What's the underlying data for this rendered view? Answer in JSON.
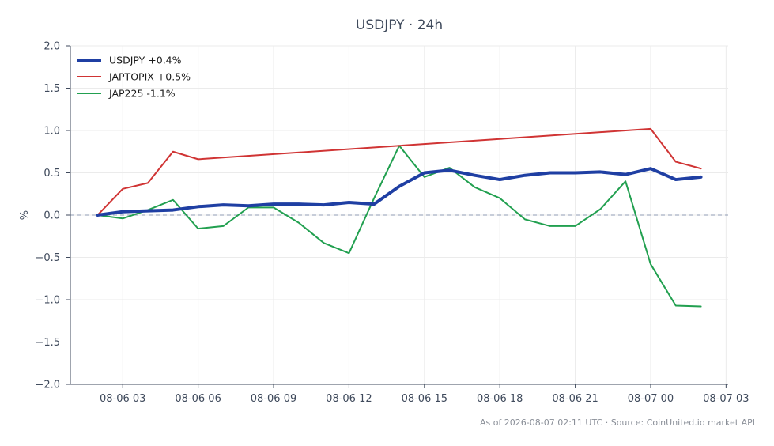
{
  "chart_data": {
    "type": "line",
    "title": "USDJPY · 24h",
    "ylabel": "%",
    "xlabel": "",
    "ylim": [
      -2.0,
      2.0
    ],
    "yticks": [
      -2.0,
      -1.5,
      -1.0,
      -0.5,
      0.0,
      0.5,
      1.0,
      1.5,
      2.0
    ],
    "ytick_labels": [
      "−2.0",
      "−1.5",
      "−1.0",
      "−0.5",
      "0.0",
      "0.5",
      "1.0",
      "1.5",
      "2.0"
    ],
    "xlim": [
      "2026-08-06 00:55",
      "2026-08-07 03:05"
    ],
    "xticks": [
      "2026-08-06 03:00",
      "2026-08-06 06:00",
      "2026-08-06 09:00",
      "2026-08-06 12:00",
      "2026-08-06 15:00",
      "2026-08-06 18:00",
      "2026-08-06 21:00",
      "2026-08-07 00:00",
      "2026-08-07 03:00"
    ],
    "xtick_labels": [
      "08-06 03",
      "08-06 06",
      "08-06 09",
      "08-06 12",
      "08-06 15",
      "08-06 18",
      "08-06 21",
      "08-07 00",
      "08-07 03"
    ],
    "grid": true,
    "zero_line": true,
    "legend_position": "top-left",
    "series": [
      {
        "name": "USDJPY +0.4%",
        "color": "#1f3fa3",
        "x": [
          "2026-08-06 02:00",
          "2026-08-06 03:00",
          "2026-08-06 04:00",
          "2026-08-06 05:00",
          "2026-08-06 06:00",
          "2026-08-06 07:00",
          "2026-08-06 08:00",
          "2026-08-06 09:00",
          "2026-08-06 10:00",
          "2026-08-06 11:00",
          "2026-08-06 12:00",
          "2026-08-06 13:00",
          "2026-08-06 14:00",
          "2026-08-06 15:00",
          "2026-08-06 16:00",
          "2026-08-06 17:00",
          "2026-08-06 18:00",
          "2026-08-06 19:00",
          "2026-08-06 20:00",
          "2026-08-06 21:00",
          "2026-08-06 22:00",
          "2026-08-06 23:00",
          "2026-08-07 00:00",
          "2026-08-07 01:00",
          "2026-08-07 02:00"
        ],
        "values": [
          0.0,
          0.04,
          0.05,
          0.06,
          0.1,
          0.12,
          0.11,
          0.13,
          0.13,
          0.12,
          0.15,
          0.13,
          0.34,
          0.5,
          0.53,
          0.47,
          0.42,
          0.47,
          0.5,
          0.5,
          0.51,
          0.48,
          0.55,
          0.42,
          0.45
        ]
      },
      {
        "name": "JAPTOPIX +0.5%",
        "color": "#d03434",
        "x": [
          "2026-08-06 02:00",
          "2026-08-06 03:00",
          "2026-08-06 04:00",
          "2026-08-06 05:00",
          "2026-08-06 06:00",
          "2026-08-07 00:00",
          "2026-08-07 01:00",
          "2026-08-07 02:00"
        ],
        "values": [
          0.0,
          0.31,
          0.38,
          0.75,
          0.66,
          1.02,
          0.63,
          0.55
        ]
      },
      {
        "name": "JAP225 -1.1%",
        "color": "#22a050",
        "x": [
          "2026-08-06 02:00",
          "2026-08-06 03:00",
          "2026-08-06 04:00",
          "2026-08-06 05:00",
          "2026-08-06 06:00",
          "2026-08-06 07:00",
          "2026-08-06 08:00",
          "2026-08-06 09:00",
          "2026-08-06 10:00",
          "2026-08-06 11:00",
          "2026-08-06 12:00",
          "2026-08-06 13:00",
          "2026-08-06 14:00",
          "2026-08-06 15:00",
          "2026-08-06 16:00",
          "2026-08-06 17:00",
          "2026-08-06 18:00",
          "2026-08-06 19:00",
          "2026-08-06 20:00",
          "2026-08-06 21:00",
          "2026-08-06 22:00",
          "2026-08-06 23:00",
          "2026-08-07 00:00",
          "2026-08-07 01:00",
          "2026-08-07 02:00"
        ],
        "values": [
          0.0,
          -0.04,
          0.06,
          0.18,
          -0.16,
          -0.13,
          0.09,
          0.09,
          -0.09,
          -0.33,
          -0.45,
          0.2,
          0.82,
          0.45,
          0.56,
          0.33,
          0.2,
          -0.05,
          -0.13,
          -0.13,
          0.07,
          0.4,
          -0.58,
          -1.07,
          -1.08
        ]
      }
    ]
  },
  "footer": {
    "text": "As of 2026-08-07 02:11 UTC · Source: CoinUnited.io market API"
  }
}
